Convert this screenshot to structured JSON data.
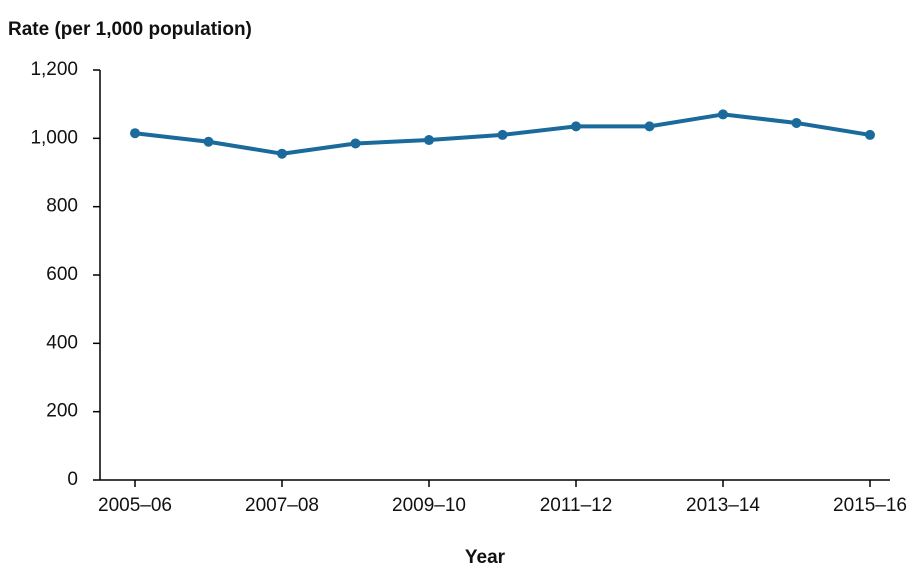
{
  "chart_data": {
    "type": "line",
    "y_label": "Rate (per 1,000 population)",
    "x_label": "Year",
    "categories": [
      "2005–06",
      null,
      "2007–08",
      null,
      "2009–10",
      null,
      "2011–12",
      null,
      "2013–14",
      null,
      "2015–16"
    ],
    "series": [
      {
        "color": "#1b6a9c",
        "values": [
          1015,
          990,
          955,
          985,
          995,
          1010,
          1035,
          1035,
          1070,
          1045,
          1010
        ]
      }
    ],
    "ylim": [
      0,
      1200
    ],
    "yticks": [
      0,
      200,
      400,
      600,
      800,
      {
        "value": 1000,
        "label": "1,000"
      },
      {
        "value": 1200,
        "label": "1,200"
      }
    ]
  }
}
